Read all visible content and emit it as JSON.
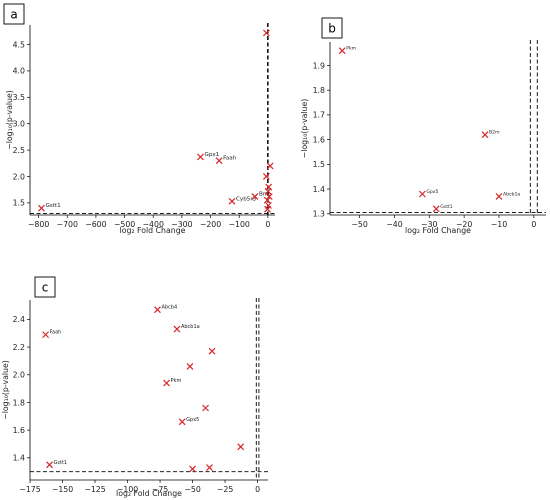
{
  "colors": {
    "marker": "#d62728",
    "axis": "#000000",
    "text": "#222222"
  },
  "chart_data": [
    {
      "type": "scatter",
      "panel_label": "a",
      "xlabel": "log₂ Fold Change",
      "ylabel": "−log₁₀(p-value)",
      "xlim": [
        -830,
        25
      ],
      "ylim": [
        1.27,
        4.87
      ],
      "xticks": [
        -800,
        -700,
        -600,
        -500,
        -400,
        -300,
        -200,
        -100,
        0
      ],
      "xtick_labels": [
        "−800",
        "−700",
        "−600",
        "−500",
        "−400",
        "−300",
        "−200",
        "−100",
        "0"
      ],
      "yticks": [
        1.5,
        2.0,
        2.5,
        3.0,
        3.5,
        4.0,
        4.5
      ],
      "ytick_labels": [
        "1.5",
        "2.0",
        "2.5",
        "3.0",
        "3.5",
        "4.0",
        "4.5"
      ],
      "hline": 1.3,
      "vlines": [
        -1,
        1
      ],
      "points": [
        {
          "x": -790,
          "y": 1.4,
          "label": "Gstt1"
        },
        {
          "x": -235,
          "y": 2.37,
          "label": "Gpx1"
        },
        {
          "x": -170,
          "y": 2.3,
          "label": "Faah"
        },
        {
          "x": -125,
          "y": 1.53,
          "label": "Cyb5r3"
        },
        {
          "x": -45,
          "y": 1.62,
          "label": "Bmt"
        },
        {
          "x": -5,
          "y": 4.72,
          "label": ""
        },
        {
          "x": 8,
          "y": 2.2,
          "label": ""
        },
        {
          "x": -5,
          "y": 2.0,
          "label": ""
        },
        {
          "x": 3,
          "y": 1.8,
          "label": ""
        },
        {
          "x": 1,
          "y": 1.72,
          "label": ""
        },
        {
          "x": 5,
          "y": 1.62,
          "label": ""
        },
        {
          "x": -2,
          "y": 1.55,
          "label": ""
        },
        {
          "x": 2,
          "y": 1.45,
          "label": ""
        },
        {
          "x": -1,
          "y": 1.38,
          "label": ""
        }
      ]
    },
    {
      "type": "scatter",
      "panel_label": "b",
      "xlabel": "log₂ Fold Change",
      "ylabel": "−log₁₀(p-value)",
      "xlim": [
        -58.5,
        3.5
      ],
      "ylim": [
        1.295,
        1.995
      ],
      "xticks": [
        -50,
        -40,
        -30,
        -20,
        -10,
        0
      ],
      "xtick_labels": [
        "−50",
        "−40",
        "−30",
        "−20",
        "−10",
        "0"
      ],
      "yticks": [
        1.3,
        1.4,
        1.5,
        1.6,
        1.7,
        1.8,
        1.9
      ],
      "ytick_labels": [
        "1.3",
        "1.4",
        "1.5",
        "1.6",
        "1.7",
        "1.8",
        "1.9"
      ],
      "hline": 1.305,
      "vlines": [
        -1,
        1
      ],
      "points": [
        {
          "x": -55,
          "y": 1.96,
          "label": "Pkm"
        },
        {
          "x": -14,
          "y": 1.62,
          "label": "B2m"
        },
        {
          "x": -32,
          "y": 1.38,
          "label": "Gpx5"
        },
        {
          "x": -10,
          "y": 1.37,
          "label": "Abcb1a"
        },
        {
          "x": -28,
          "y": 1.32,
          "label": "Gstt1"
        }
      ]
    },
    {
      "type": "scatter",
      "panel_label": "c",
      "xlabel": "log₂ Fold Change",
      "ylabel": "−log₁₀(p-value)",
      "xlim": [
        -175,
        8
      ],
      "ylim": [
        1.24,
        2.54
      ],
      "xticks": [
        -175,
        -150,
        -125,
        -100,
        -75,
        -50,
        -25,
        0
      ],
      "xtick_labels": [
        "−175",
        "−150",
        "−125",
        "−100",
        "−75",
        "−50",
        "−25",
        "0"
      ],
      "yticks": [
        1.4,
        1.6,
        1.8,
        2.0,
        2.2,
        2.4
      ],
      "ytick_labels": [
        "1.4",
        "1.6",
        "1.8",
        "2.0",
        "2.2",
        "2.4"
      ],
      "hline": 1.3,
      "vlines": [
        -1,
        1
      ],
      "points": [
        {
          "x": -163,
          "y": 2.29,
          "label": "Faah"
        },
        {
          "x": -160,
          "y": 1.35,
          "label": "Gstt1"
        },
        {
          "x": -77,
          "y": 2.47,
          "label": "Abcb4"
        },
        {
          "x": -62,
          "y": 2.33,
          "label": "Abcb1a"
        },
        {
          "x": -70,
          "y": 1.94,
          "label": "Pkm"
        },
        {
          "x": -58,
          "y": 1.66,
          "label": "Gpx5"
        },
        {
          "x": -35,
          "y": 2.17,
          "label": ""
        },
        {
          "x": -52,
          "y": 2.06,
          "label": ""
        },
        {
          "x": -40,
          "y": 1.76,
          "label": ""
        },
        {
          "x": -13,
          "y": 1.48,
          "label": ""
        },
        {
          "x": -50,
          "y": 1.32,
          "label": ""
        },
        {
          "x": -37,
          "y": 1.33,
          "label": ""
        }
      ]
    }
  ]
}
